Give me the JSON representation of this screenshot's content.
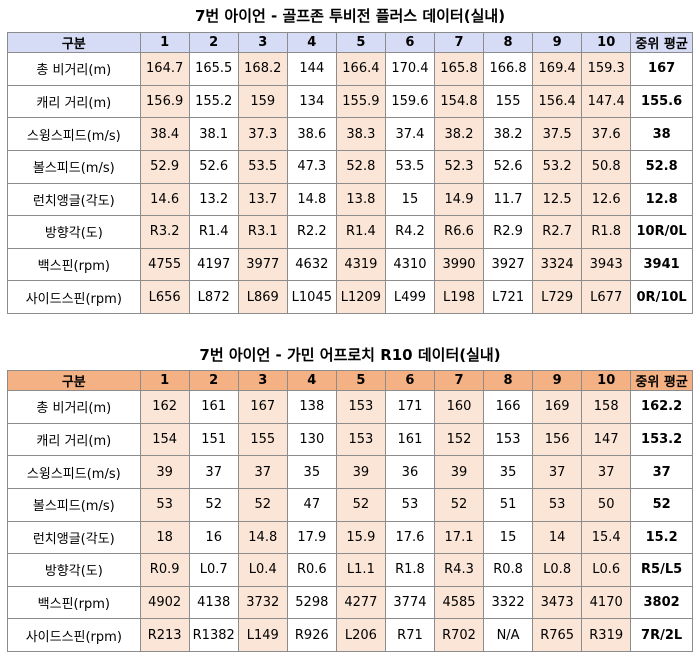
{
  "table1": {
    "title": "7번 아이언 - 골프존 투비전 플러스 데이터(실내)",
    "header": [
      "구분",
      "1",
      "2",
      "3",
      "4",
      "5",
      "6",
      "7",
      "8",
      "9",
      "10",
      "중위 평균"
    ],
    "rows": [
      {
        "label": "총 비거리(m)",
        "values": [
          "164.7",
          "165.5",
          "168.2",
          "144",
          "166.4",
          "170.4",
          "165.8",
          "166.8",
          "169.4",
          "159.3"
        ],
        "median": "167"
      },
      {
        "label": "캐리 거리(m)",
        "values": [
          "156.9",
          "155.2",
          "159",
          "134",
          "155.9",
          "159.6",
          "154.8",
          "155",
          "156.4",
          "147.4"
        ],
        "median": "155.6"
      },
      {
        "label": "스윙스피드(m/s)",
        "values": [
          "38.4",
          "38.1",
          "37.3",
          "38.6",
          "38.3",
          "37.4",
          "38.2",
          "38.2",
          "37.5",
          "37.6"
        ],
        "median": "38"
      },
      {
        "label": "볼스피드(m/s)",
        "values": [
          "52.9",
          "52.6",
          "53.5",
          "47.3",
          "52.8",
          "53.5",
          "52.3",
          "52.6",
          "53.2",
          "50.8"
        ],
        "median": "52.8"
      },
      {
        "label": "런치앵글(각도)",
        "values": [
          "14.6",
          "13.2",
          "13.7",
          "14.8",
          "13.8",
          "15",
          "14.9",
          "11.7",
          "12.5",
          "12.6"
        ],
        "median": "12.8"
      },
      {
        "label": "방향각(도)",
        "values": [
          "R3.2",
          "R1.4",
          "R3.1",
          "R2.2",
          "R1.4",
          "R4.2",
          "R6.6",
          "R2.9",
          "R2.7",
          "R1.8"
        ],
        "median": "10R/0L"
      },
      {
        "label": "백스핀(rpm)",
        "values": [
          "4755",
          "4197",
          "3977",
          "4632",
          "4319",
          "4310",
          "3990",
          "3927",
          "3324",
          "3943"
        ],
        "median": "3941"
      },
      {
        "label": "사이드스핀(rpm)",
        "values": [
          "L656",
          "L872",
          "L869",
          "L1045",
          "L1209",
          "L499",
          "L198",
          "L721",
          "L729",
          "L677"
        ],
        "median": "0R/10L"
      }
    ]
  },
  "table2": {
    "title": "7번 아이언 - 가민 어프로치 R10 데이터(실내)",
    "header": [
      "구분",
      "1",
      "2",
      "3",
      "4",
      "5",
      "6",
      "7",
      "8",
      "9",
      "10",
      "중위 평균"
    ],
    "rows": [
      {
        "label": "총 비거리(m)",
        "values": [
          "162",
          "161",
          "167",
          "138",
          "153",
          "171",
          "160",
          "166",
          "169",
          "158"
        ],
        "median": "162.2"
      },
      {
        "label": "캐리 거리(m)",
        "values": [
          "154",
          "151",
          "155",
          "130",
          "153",
          "161",
          "152",
          "153",
          "156",
          "147"
        ],
        "median": "153.2"
      },
      {
        "label": "스윙스피드(m/s)",
        "values": [
          "39",
          "37",
          "37",
          "35",
          "39",
          "36",
          "39",
          "35",
          "37",
          "37"
        ],
        "median": "37"
      },
      {
        "label": "볼스피드(m/s)",
        "values": [
          "53",
          "52",
          "52",
          "47",
          "52",
          "53",
          "52",
          "51",
          "53",
          "50"
        ],
        "median": "52"
      },
      {
        "label": "런치앵글(각도)",
        "values": [
          "18",
          "16",
          "14.8",
          "17.9",
          "15.9",
          "17.6",
          "17.1",
          "15",
          "14",
          "15.4"
        ],
        "median": "15.2"
      },
      {
        "label": "방향각(도)",
        "values": [
          "R0.9",
          "L0.7",
          "L0.4",
          "R0.6",
          "L1.1",
          "R1.8",
          "R4.3",
          "R0.8",
          "L0.8",
          "L0.6"
        ],
        "median": "R5/L5"
      },
      {
        "label": "백스핀(rpm)",
        "values": [
          "4902",
          "4138",
          "3732",
          "5298",
          "4277",
          "3774",
          "4585",
          "3322",
          "3473",
          "4170"
        ],
        "median": "3802"
      },
      {
        "label": "사이드스핀(rpm)",
        "values": [
          "R213",
          "R1382",
          "L149",
          "R926",
          "L206",
          "R71",
          "R702",
          "N/A",
          "R765",
          "R319"
        ],
        "median": "7R/2L"
      }
    ]
  },
  "colors": {
    "header1": "#d6dcf5",
    "header2": "#f4b183",
    "highlight": "#fbe5d6",
    "border": "#8c8c8c"
  }
}
